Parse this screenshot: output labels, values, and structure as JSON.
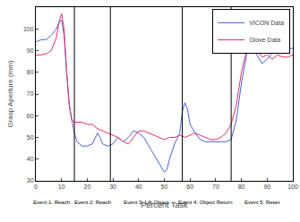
{
  "chart_data": {
    "type": "line",
    "x_label": "Percent Task",
    "y_label": "Grasp Aperture (mm)",
    "xlim": [
      0,
      100
    ],
    "xticks": [
      0,
      10,
      20,
      30,
      40,
      50,
      60,
      70,
      80,
      90,
      100
    ],
    "ylim": [
      30,
      110
    ],
    "yticks": [
      30,
      40,
      50,
      60,
      70,
      80,
      90,
      100
    ],
    "grid": false,
    "legend": "top-right",
    "event_lines": [
      15,
      29,
      57,
      76
    ],
    "annotations": [
      {
        "text": "Event 1: Reach",
        "x": 6
      },
      {
        "text": "Event 2: Reach",
        "x": 22
      },
      {
        "text": "Event 3: Lift Object",
        "x": 43
      },
      {
        "text": "Event 4: Object Return",
        "x": 66
      },
      {
        "text": "Event 5: Reset",
        "x": 88
      }
    ],
    "series": [
      {
        "name": "VICON Data",
        "color": "#4a63d6",
        "x": [
          0,
          2,
          4,
          6,
          8,
          9,
          10,
          11,
          12,
          13,
          14,
          15,
          16,
          18,
          20,
          22,
          24,
          25,
          26,
          28,
          30,
          32,
          34,
          36,
          38,
          40,
          42,
          44,
          46,
          48,
          50,
          51,
          52,
          54,
          56,
          57,
          58,
          59,
          60,
          62,
          64,
          66,
          70,
          74,
          76,
          78,
          80,
          82,
          84,
          85,
          86,
          88,
          90,
          92,
          94,
          96,
          98,
          100
        ],
        "values": [
          94,
          95,
          95,
          97,
          100,
          103,
          104,
          97,
          80,
          65,
          58,
          52,
          48,
          46,
          46,
          47,
          52,
          50,
          47,
          46,
          47,
          50,
          48,
          50,
          53,
          52,
          50,
          46,
          42,
          38,
          34,
          35,
          40,
          47,
          52,
          62,
          66,
          63,
          56,
          52,
          49,
          48,
          48,
          48,
          49,
          58,
          75,
          88,
          95,
          93,
          88,
          84,
          86,
          89,
          90,
          90,
          91,
          91
        ]
      },
      {
        "name": "Glove Data",
        "color": "#e0306a",
        "x": [
          0,
          2,
          4,
          6,
          8,
          9,
          10,
          11,
          12,
          13,
          14,
          15,
          18,
          20,
          22,
          24,
          26,
          28,
          30,
          32,
          34,
          36,
          38,
          40,
          42,
          44,
          46,
          48,
          50,
          52,
          54,
          56,
          58,
          60,
          62,
          64,
          66,
          68,
          70,
          72,
          74,
          76,
          78,
          80,
          82,
          84,
          86,
          88,
          90,
          92,
          94,
          96,
          98,
          100
        ],
        "values": [
          88,
          88,
          88.5,
          90,
          96,
          103,
          107,
          100,
          80,
          65,
          58,
          57,
          57,
          56,
          56,
          54,
          53,
          52,
          51,
          50,
          48,
          47,
          50,
          53,
          53,
          52,
          51,
          50,
          49,
          50,
          50,
          51,
          50,
          51,
          52,
          51,
          50,
          49,
          49,
          50,
          52,
          56,
          65,
          80,
          90,
          95,
          90,
          87,
          88,
          86,
          88,
          87,
          87,
          88
        ]
      }
    ]
  }
}
